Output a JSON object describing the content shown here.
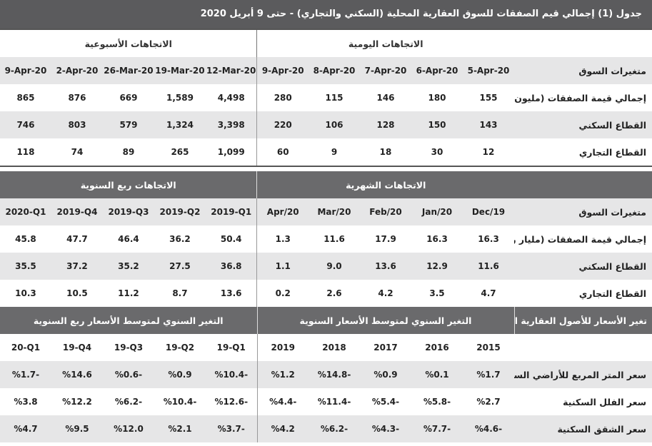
{
  "title": "جدول (1) إجمالي قيم الصفقات للسوق العقارية المحلية (السكني والتجاري) - حتى 9 أبريل 2020",
  "sections": [
    {
      "groups": [
        "الاتجاهات اليومية",
        "الاتجاهات الأسبوعية"
      ],
      "column_label": "متغيرات السوق",
      "columns": [
        "5-Apr-20",
        "6-Apr-20",
        "7-Apr-20",
        "8-Apr-20",
        "9-Apr-20",
        "12-Mar-20",
        "19-Mar-20",
        "26-Mar-20",
        "2-Apr-20",
        "9-Apr-20"
      ],
      "rows": [
        {
          "label": "إجمالي قيمة الصفقات (مليون ريال)",
          "values": [
            "155",
            "180",
            "146",
            "115",
            "280",
            "4,498",
            "1,589",
            "669",
            "876",
            "865"
          ]
        },
        {
          "label": "القطاع السكني",
          "values": [
            "143",
            "150",
            "128",
            "106",
            "220",
            "3,398",
            "1,324",
            "579",
            "803",
            "746"
          ]
        },
        {
          "label": "القطاع التجاري",
          "values": [
            "12",
            "30",
            "18",
            "9",
            "60",
            "1,099",
            "265",
            "89",
            "74",
            "118"
          ]
        }
      ]
    },
    {
      "groups": [
        "الاتجاهات الشهرية",
        "الاتجاهات ربع السنوية"
      ],
      "column_label": "متغيرات السوق",
      "columns": [
        "Dec/19",
        "Jan/20",
        "Feb/20",
        "Mar/20",
        "Apr/20",
        "2019-Q1",
        "2019-Q2",
        "2019-Q3",
        "2019-Q4",
        "2020-Q1"
      ],
      "rows": [
        {
          "label": "إجمالي قيمة الصفقات (مليار ريال)",
          "values": [
            "16.3",
            "16.3",
            "17.9",
            "11.6",
            "1.3",
            "50.4",
            "36.2",
            "46.4",
            "47.7",
            "45.8"
          ]
        },
        {
          "label": "القطاع السكني",
          "values": [
            "11.6",
            "12.9",
            "13.6",
            "9.0",
            "1.1",
            "36.8",
            "27.5",
            "35.2",
            "37.2",
            "35.5"
          ]
        },
        {
          "label": "القطاع التجاري",
          "values": [
            "4.7",
            "3.5",
            "4.2",
            "2.6",
            "0.2",
            "13.6",
            "8.7",
            "11.2",
            "10.5",
            "10.3"
          ]
        }
      ]
    },
    {
      "title": "تغير الأسعار للأصول العقارية السكنية",
      "groups": [
        "التغير السنوي لمتوسط الأسعار السنوية",
        "التغير السنوي لمتوسط الأسعار ربع السنوية"
      ],
      "columns": [
        "2015",
        "2016",
        "2017",
        "2018",
        "2019",
        "19-Q1",
        "19-Q2",
        "19-Q3",
        "19-Q4",
        "20-Q1"
      ],
      "rows": [
        {
          "label": "سعر المتر المربع للأراضي السكنية",
          "values": [
            "%1.7",
            "%0.1",
            "%0.9",
            "%14.8-",
            "%1.2",
            "%10.4-",
            "%0.9",
            "%0.6-",
            "%14.6",
            "%1.7-"
          ]
        },
        {
          "label": "سعر الفلل السكنية",
          "values": [
            "%2.7",
            "%5.8-",
            "%5.4-",
            "%11.4-",
            "%4.4-",
            "%12.6-",
            "%10.4-",
            "%6.2-",
            "%12.2",
            "%3.8"
          ]
        },
        {
          "label": "سعر الشقق السكنية",
          "values": [
            "%4.6-",
            "%7.7-",
            "%4.3-",
            "%6.2-",
            "%4.2",
            "%3.7-",
            "%2.1",
            "%12.0",
            "%9.5",
            "%4.7"
          ]
        }
      ]
    }
  ]
}
